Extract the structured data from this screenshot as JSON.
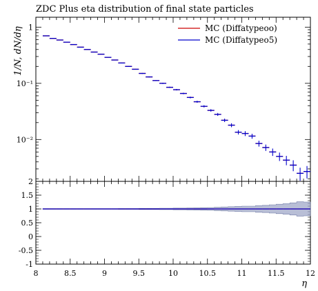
{
  "chart_data": {
    "type": "scatter",
    "title": "ZDC Plus eta distribution of final state particles",
    "xlabel": "η",
    "ylabel": "1/N, dN/dη",
    "xlim": [
      8,
      12
    ],
    "ylim": [
      0.0018,
      1.5
    ],
    "yscale": "log",
    "legend_position": "top-right",
    "x_ticks": [
      "8",
      "8.5",
      "9",
      "9.5",
      "10",
      "10.5",
      "11",
      "11.5",
      "12"
    ],
    "y_ticks": [
      "1",
      "10⁻¹",
      "10⁻²"
    ],
    "ratio_ticks": [
      "2",
      "1.5",
      "1",
      "0.5",
      "0",
      "-0.5",
      "-1"
    ],
    "ratio_ylim": [
      -1,
      2
    ],
    "bin_width": 0.1,
    "x": [
      8.15,
      8.25,
      8.35,
      8.45,
      8.55,
      8.65,
      8.75,
      8.85,
      8.95,
      9.05,
      9.15,
      9.25,
      9.35,
      9.45,
      9.55,
      9.65,
      9.75,
      9.85,
      9.95,
      10.05,
      10.15,
      10.25,
      10.35,
      10.45,
      10.55,
      10.65,
      10.75,
      10.85,
      10.95,
      11.05,
      11.15,
      11.25,
      11.35,
      11.45,
      11.55,
      11.65,
      11.75,
      11.85,
      11.95
    ],
    "series": [
      {
        "name": "MC (Diffatypeoo)",
        "color": "#cc0000",
        "values": [
          0.7,
          0.63,
          0.59,
          0.54,
          0.49,
          0.44,
          0.4,
          0.36,
          0.33,
          0.29,
          0.26,
          0.23,
          0.2,
          0.178,
          0.15,
          0.13,
          0.112,
          0.1,
          0.085,
          0.077,
          0.066,
          0.056,
          0.047,
          0.039,
          0.033,
          0.028,
          0.022,
          0.018,
          0.0135,
          0.0128,
          0.0115,
          0.0085,
          0.0072,
          0.006,
          0.005,
          0.0043,
          0.0035,
          0.0025,
          0.0027
        ]
      },
      {
        "name": "MC (Diffatypeo5)",
        "color": "#0000cc",
        "values": [
          0.7,
          0.63,
          0.59,
          0.54,
          0.49,
          0.44,
          0.4,
          0.36,
          0.33,
          0.29,
          0.26,
          0.23,
          0.2,
          0.178,
          0.15,
          0.13,
          0.112,
          0.1,
          0.085,
          0.077,
          0.066,
          0.056,
          0.047,
          0.039,
          0.033,
          0.028,
          0.022,
          0.018,
          0.0135,
          0.0128,
          0.0115,
          0.0085,
          0.0072,
          0.006,
          0.005,
          0.0043,
          0.0035,
          0.0025,
          0.0027
        ],
        "rel_errors": [
          0.01,
          0.01,
          0.01,
          0.01,
          0.01,
          0.01,
          0.01,
          0.01,
          0.01,
          0.01,
          0.01,
          0.015,
          0.015,
          0.015,
          0.02,
          0.02,
          0.02,
          0.025,
          0.025,
          0.03,
          0.03,
          0.035,
          0.04,
          0.045,
          0.05,
          0.06,
          0.07,
          0.08,
          0.09,
          0.1,
          0.1,
          0.12,
          0.13,
          0.15,
          0.17,
          0.19,
          0.22,
          0.26,
          0.25
        ]
      }
    ],
    "ratio": [
      1,
      1,
      1,
      1,
      1,
      1,
      1,
      1,
      1,
      1,
      1,
      1,
      1,
      1,
      1,
      1,
      1,
      1,
      1,
      1,
      1,
      1,
      1,
      1,
      1,
      1,
      1,
      1,
      1,
      1,
      1,
      1,
      1,
      1,
      1,
      1,
      1,
      1,
      1
    ]
  }
}
